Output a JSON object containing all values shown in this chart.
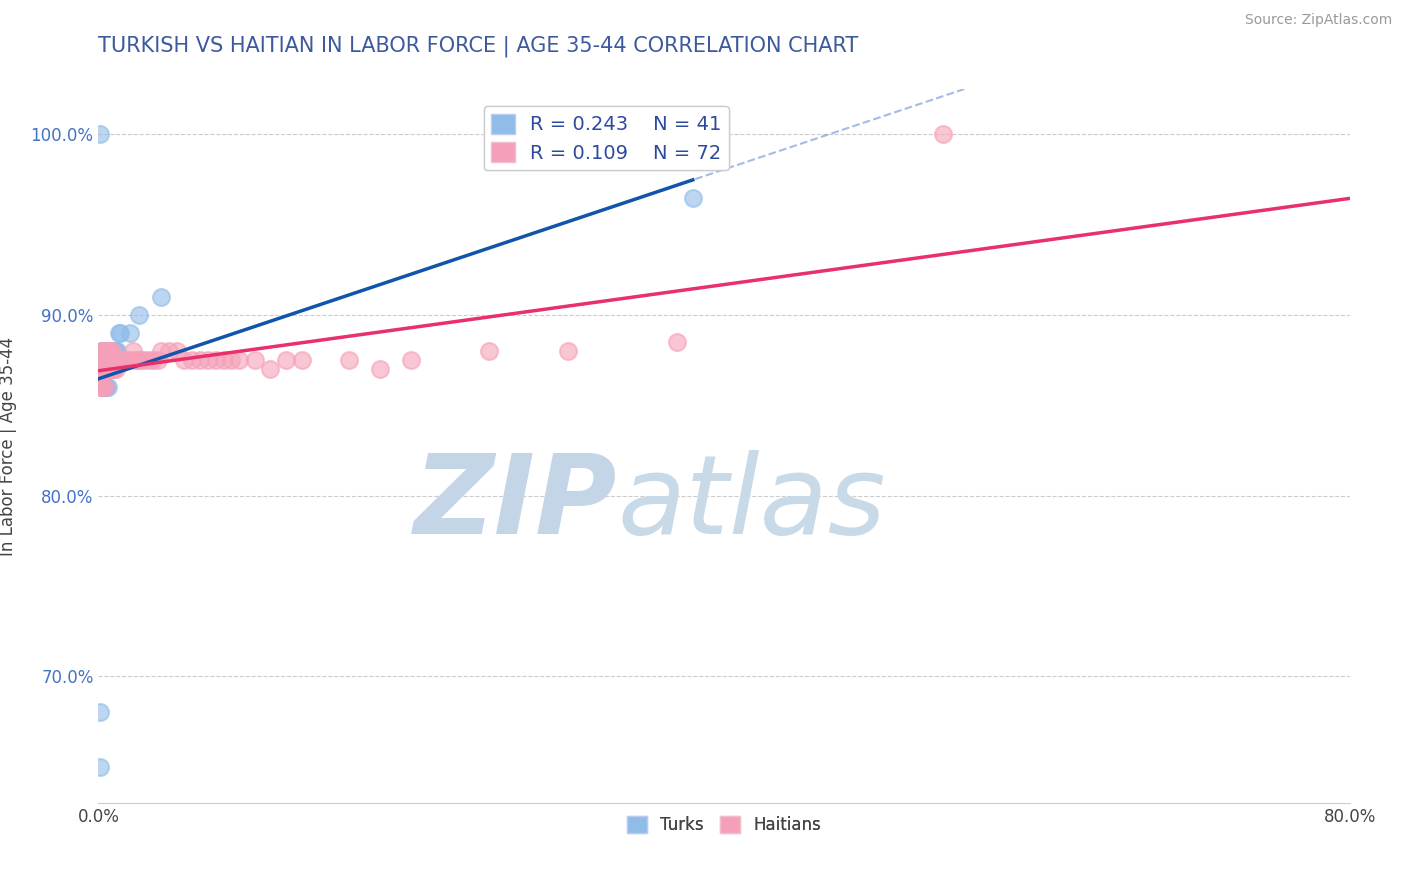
{
  "title": "TURKISH VS HAITIAN IN LABOR FORCE | AGE 35-44 CORRELATION CHART",
  "source": "Source: ZipAtlas.com",
  "ylabel": "In Labor Force | Age 35-44",
  "xlim": [
    0.0,
    0.8
  ],
  "ylim": [
    0.63,
    1.025
  ],
  "xticks": [
    0.0,
    0.8
  ],
  "xticklabels": [
    "0.0%",
    "80.0%"
  ],
  "yticks": [
    0.7,
    0.8,
    0.9,
    1.0
  ],
  "yticklabels": [
    "70.0%",
    "80.0%",
    "90.0%",
    "100.0%"
  ],
  "title_color": "#3d5a9e",
  "title_fontsize": 15,
  "legend_r1": "R = 0.243",
  "legend_n1": "N = 41",
  "legend_r2": "R = 0.109",
  "legend_n2": "N = 72",
  "turks_color": "#90bce8",
  "haitians_color": "#f5a0b8",
  "turks_line_color": "#1155aa",
  "haitians_line_color": "#e8306a",
  "turks_x": [
    0.001,
    0.001,
    0.002,
    0.002,
    0.002,
    0.002,
    0.003,
    0.003,
    0.003,
    0.003,
    0.003,
    0.004,
    0.004,
    0.004,
    0.004,
    0.004,
    0.005,
    0.005,
    0.005,
    0.005,
    0.006,
    0.006,
    0.006,
    0.006,
    0.007,
    0.007,
    0.007,
    0.008,
    0.008,
    0.009,
    0.01,
    0.011,
    0.012,
    0.013,
    0.014,
    0.02,
    0.026,
    0.04,
    0.38,
    0.001,
    0.001
  ],
  "turks_y": [
    0.87,
    0.65,
    0.88,
    0.87,
    0.86,
    0.88,
    0.87,
    0.86,
    0.87,
    0.86,
    0.88,
    0.87,
    0.86,
    0.86,
    0.87,
    0.87,
    0.88,
    0.87,
    0.86,
    0.87,
    0.87,
    0.86,
    0.88,
    0.87,
    0.88,
    0.87,
    0.87,
    0.87,
    0.88,
    0.87,
    0.88,
    0.88,
    0.88,
    0.89,
    0.89,
    0.89,
    0.9,
    0.91,
    0.965,
    0.68,
    1.0
  ],
  "haitians_x": [
    0.001,
    0.001,
    0.001,
    0.002,
    0.002,
    0.002,
    0.002,
    0.003,
    0.003,
    0.003,
    0.003,
    0.003,
    0.004,
    0.004,
    0.004,
    0.004,
    0.004,
    0.005,
    0.005,
    0.005,
    0.005,
    0.006,
    0.006,
    0.006,
    0.007,
    0.007,
    0.007,
    0.008,
    0.008,
    0.009,
    0.009,
    0.01,
    0.01,
    0.011,
    0.011,
    0.012,
    0.013,
    0.014,
    0.015,
    0.016,
    0.018,
    0.02,
    0.022,
    0.024,
    0.025,
    0.027,
    0.03,
    0.033,
    0.035,
    0.038,
    0.04,
    0.045,
    0.05,
    0.055,
    0.06,
    0.065,
    0.07,
    0.075,
    0.08,
    0.085,
    0.09,
    0.1,
    0.11,
    0.12,
    0.13,
    0.16,
    0.18,
    0.2,
    0.25,
    0.3,
    0.37,
    0.54
  ],
  "haitians_y": [
    0.87,
    0.87,
    0.86,
    0.88,
    0.87,
    0.87,
    0.86,
    0.87,
    0.88,
    0.87,
    0.87,
    0.86,
    0.87,
    0.87,
    0.87,
    0.86,
    0.87,
    0.87,
    0.88,
    0.87,
    0.87,
    0.87,
    0.88,
    0.87,
    0.88,
    0.87,
    0.87,
    0.87,
    0.88,
    0.87,
    0.88,
    0.87,
    0.875,
    0.87,
    0.875,
    0.875,
    0.875,
    0.875,
    0.875,
    0.875,
    0.875,
    0.875,
    0.88,
    0.875,
    0.875,
    0.875,
    0.875,
    0.875,
    0.875,
    0.875,
    0.88,
    0.88,
    0.88,
    0.875,
    0.875,
    0.875,
    0.875,
    0.875,
    0.875,
    0.875,
    0.875,
    0.875,
    0.87,
    0.875,
    0.875,
    0.875,
    0.87,
    0.875,
    0.88,
    0.88,
    0.885,
    1.0
  ]
}
